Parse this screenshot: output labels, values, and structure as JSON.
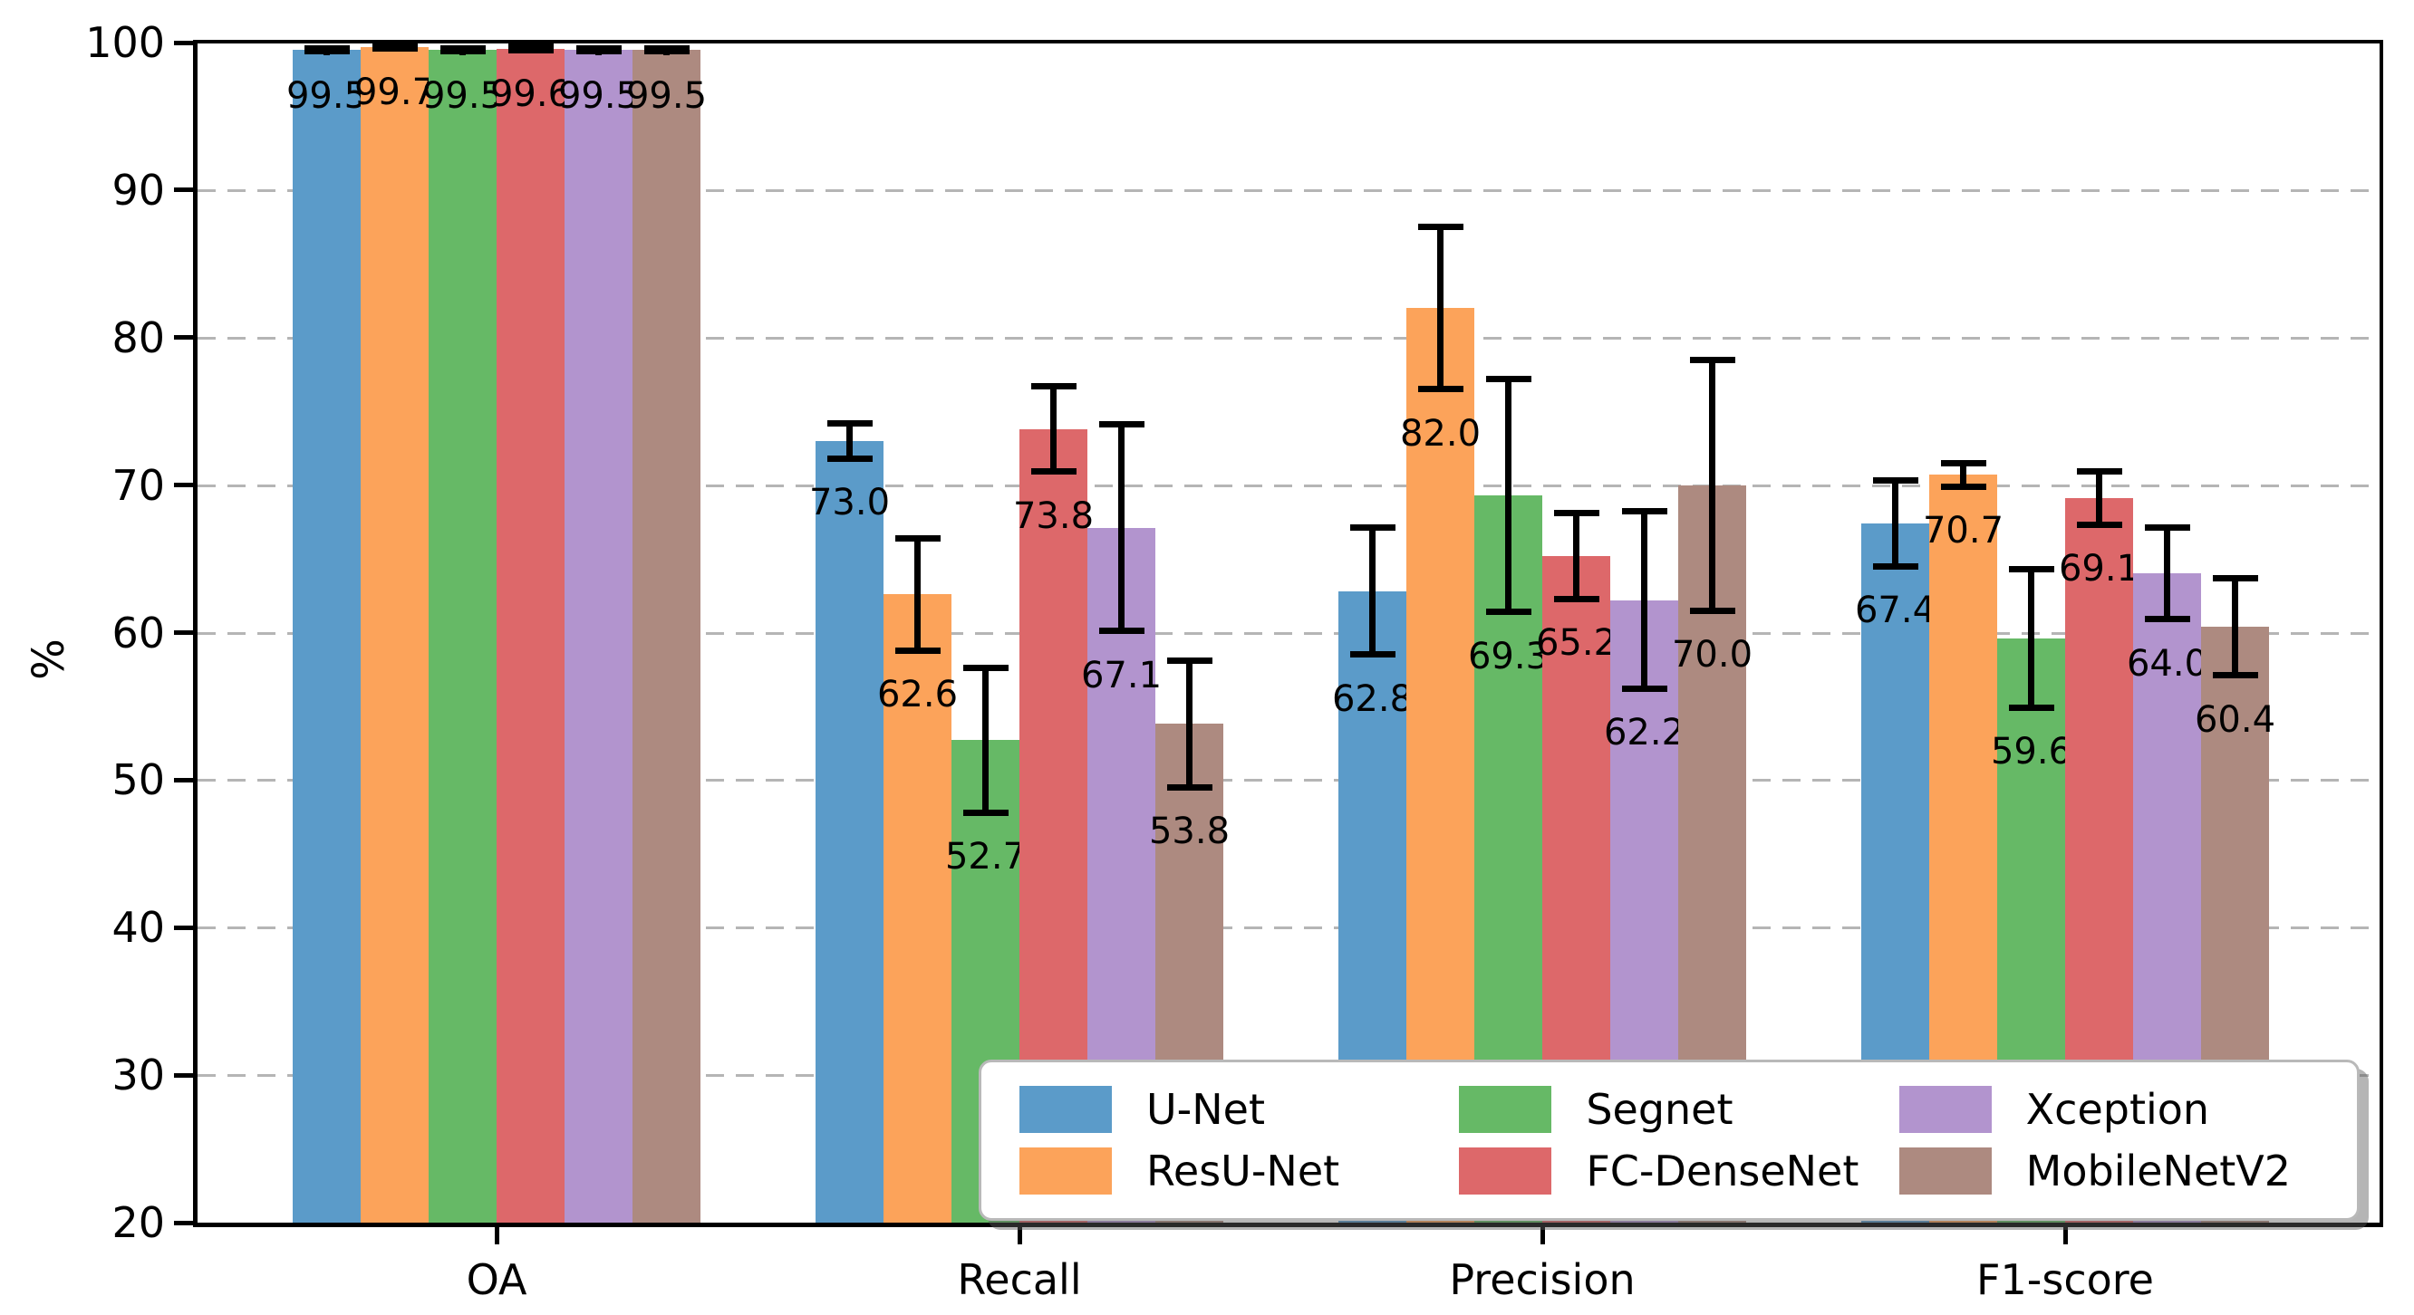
{
  "chart_data": {
    "type": "bar",
    "title": "",
    "xlabel": "",
    "ylabel": "%",
    "ylim": [
      20,
      100
    ],
    "yticks": [
      20,
      30,
      40,
      50,
      60,
      70,
      80,
      90,
      100
    ],
    "grid": "horizontal dashed gridlines at each y tick",
    "legend_position": "lower right, 3 columns, fancy box with shadow",
    "error_bars": "symmetric, black, with caps",
    "categories": [
      "OA",
      "Recall",
      "Precision",
      "F1-score"
    ],
    "series": [
      {
        "name": "U-Net",
        "color": "#5b9bc9",
        "values": [
          99.5,
          73.0,
          62.8,
          67.4
        ],
        "errors": [
          0.1,
          1.2,
          4.3,
          2.9
        ]
      },
      {
        "name": "ResU-Net",
        "color": "#fca35a",
        "values": [
          99.7,
          62.6,
          82.0,
          70.7
        ],
        "errors": [
          0.1,
          3.8,
          5.5,
          0.8
        ]
      },
      {
        "name": "Segnet",
        "color": "#66b966",
        "values": [
          99.5,
          52.7,
          69.3,
          59.6
        ],
        "errors": [
          0.1,
          4.9,
          7.9,
          4.7
        ]
      },
      {
        "name": "FC-DenseNet",
        "color": "#dd686a",
        "values": [
          99.6,
          73.8,
          65.2,
          69.1
        ],
        "errors": [
          0.1,
          2.9,
          2.9,
          1.8
        ]
      },
      {
        "name": "Xception",
        "color": "#b294ce",
        "values": [
          99.5,
          67.1,
          62.2,
          64.0
        ],
        "errors": [
          0.1,
          7.0,
          6.0,
          3.1
        ]
      },
      {
        "name": "MobileNetV2",
        "color": "#ad8a80",
        "values": [
          99.5,
          53.8,
          70.0,
          60.4
        ],
        "errors": [
          0.1,
          4.3,
          8.5,
          3.3
        ]
      }
    ],
    "bar_value_labels": [
      "99.5",
      "99.7",
      "99.5",
      "99.6",
      "99.5",
      "99.5",
      "73.0",
      "62.6",
      "52.7",
      "73.8",
      "67.1",
      "53.8",
      "62.8",
      "82.0",
      "69.3",
      "65.2",
      "62.2",
      "70.0",
      "67.4",
      "70.7",
      "59.6",
      "69.1",
      "64.0",
      "60.4"
    ]
  }
}
